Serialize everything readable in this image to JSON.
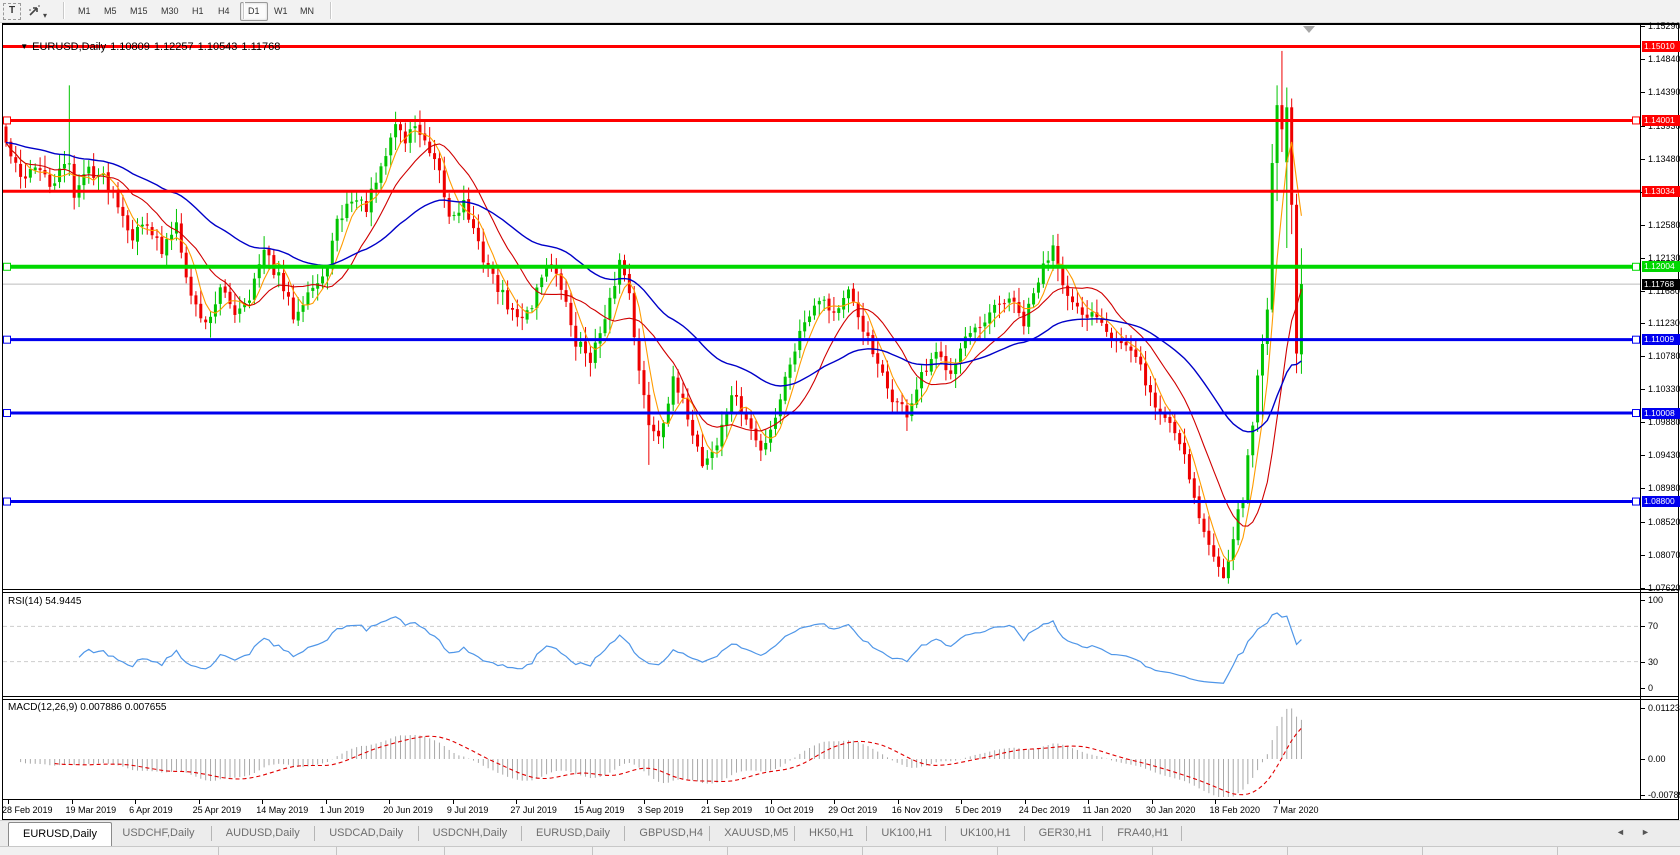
{
  "toolbar": {
    "text_tool_label": "T",
    "timeframes": [
      "M1",
      "M5",
      "M15",
      "M30",
      "H1",
      "H4",
      "D1",
      "W1",
      "MN"
    ],
    "active_timeframe": "D1"
  },
  "window": {
    "info_line": {
      "symbol_period": "EURUSD,Daily",
      "open": "1.10809",
      "high": "1.12257",
      "low": "1.10543",
      "close": "1.11768"
    }
  },
  "price_axis": {
    "ticks": [
      "1.15290",
      "1.14840",
      "1.14390",
      "1.13930",
      "1.13480",
      "1.13030",
      "1.12580",
      "1.12130",
      "1.11680",
      "1.11230",
      "1.10780",
      "1.10330",
      "1.09880",
      "1.09430",
      "1.08980",
      "1.08520",
      "1.08070",
      "1.07620"
    ],
    "top_price": 1.1529,
    "bottom_price": 1.0762
  },
  "rsi_panel": {
    "label": "RSI(14) 54.9445",
    "value": "54.9445",
    "levels": [
      "100",
      "70",
      "30",
      "0"
    ],
    "level_values": [
      100,
      70,
      30,
      0
    ],
    "line_color": "#4f96e8"
  },
  "macd_panel": {
    "label": "MACD(12,26,9) 0.007886 0.007655",
    "macd_value": "0.007886",
    "signal_value": "0.007655",
    "axis": [
      "0.011232",
      "0.00",
      "-0.00789"
    ],
    "axis_values": [
      0.011232,
      0,
      -0.00789
    ],
    "histogram_color": "#a8a8a8",
    "signal_color": "#e00000"
  },
  "date_axis": {
    "labels": [
      "28 Feb 2019",
      "19 Mar 2019",
      "6 Apr 2019",
      "25 Apr 2019",
      "14 May 2019",
      "1 Jun 2019",
      "20 Jun 2019",
      "9 Jul 2019",
      "27 Jul 2019",
      "15 Aug 2019",
      "3 Sep 2019",
      "21 Sep 2019",
      "10 Oct 2019",
      "29 Oct 2019",
      "16 Nov 2019",
      "5 Dec 2019",
      "24 Dec 2019",
      "11 Jan 2020",
      "30 Jan 2020",
      "18 Feb 2020",
      "7 Mar 2020"
    ]
  },
  "tabs": {
    "items": [
      "EURUSD,Daily",
      "USDCHF,Daily",
      "AUDUSD,Daily",
      "USDCAD,Daily",
      "USDCNH,Daily",
      "EURUSD,Daily",
      "GBPUSD,H4",
      "XAUUSD,M5",
      "HK50,H1",
      "UK100,H1",
      "UK100,H1",
      "GER30,H1",
      "FRA40,H1"
    ],
    "active_index": 0,
    "scroll_left": "◄",
    "scroll_right": "►"
  },
  "chart_data": {
    "type": "candlestick",
    "symbol": "EURUSD",
    "timeframe": "Daily",
    "last_candle": {
      "o": 1.10809,
      "h": 1.12257,
      "l": 1.10543,
      "c": 1.11768
    },
    "colors": {
      "bull": "#00c400",
      "bear": "#ee0000",
      "price_line": "#bcbcbc"
    },
    "hlines": [
      {
        "price": 1.1501,
        "label": "1.15010",
        "color": "#ff0000",
        "width": 3,
        "handles": false
      },
      {
        "price": 1.14001,
        "label": "1.14001",
        "color": "#ff0000",
        "width": 3,
        "handles": true
      },
      {
        "price": 1.13034,
        "label": "1.13034",
        "color": "#ff0000",
        "width": 3,
        "handles": false
      },
      {
        "price": 1.12004,
        "label": "1.12004",
        "color": "#00d800",
        "width": 4,
        "handles": true
      },
      {
        "price": 1.11009,
        "label": "1.11009",
        "color": "#0000ee",
        "width": 3,
        "handles": true
      },
      {
        "price": 1.10008,
        "label": "1.10008",
        "color": "#0000ee",
        "width": 3,
        "handles": true
      },
      {
        "price": 1.088,
        "label": "1.08800",
        "color": "#0000ee",
        "width": 3,
        "handles": true
      }
    ],
    "price_marker": {
      "price": 1.11768,
      "label": "1.11768",
      "bg": "#000000"
    },
    "moving_averages": [
      {
        "name": "fast",
        "period": 5,
        "color": "#ff9c00",
        "type": "sma"
      },
      {
        "name": "mid",
        "period": 13,
        "color": "#d00000",
        "type": "sma"
      },
      {
        "name": "slow",
        "period": 45,
        "color": "#0000c8",
        "type": "ema"
      }
    ],
    "anchors": [
      [
        0,
        1.1368
      ],
      [
        3,
        1.132
      ],
      [
        6,
        1.134
      ],
      [
        9,
        1.131
      ],
      [
        13,
        1.1345
      ],
      [
        14,
        1.13
      ],
      [
        17,
        1.1335
      ],
      [
        20,
        1.1322
      ],
      [
        23,
        1.129
      ],
      [
        26,
        1.1242
      ],
      [
        29,
        1.1265
      ],
      [
        32,
        1.1218
      ],
      [
        35,
        1.1262
      ],
      [
        38,
        1.116
      ],
      [
        41,
        1.1122
      ],
      [
        44,
        1.1168
      ],
      [
        47,
        1.114
      ],
      [
        50,
        1.1162
      ],
      [
        53,
        1.122
      ],
      [
        56,
        1.1185
      ],
      [
        59,
        1.1135
      ],
      [
        62,
        1.1168
      ],
      [
        65,
        1.118
      ],
      [
        68,
        1.1258
      ],
      [
        71,
        1.1295
      ],
      [
        74,
        1.1282
      ],
      [
        77,
        1.133
      ],
      [
        80,
        1.1398
      ],
      [
        82,
        1.1372
      ],
      [
        84,
        1.1396
      ],
      [
        87,
        1.1352
      ],
      [
        89,
        1.1325
      ],
      [
        91,
        1.1268
      ],
      [
        94,
        1.1288
      ],
      [
        97,
        1.1228
      ],
      [
        100,
        1.1185
      ],
      [
        103,
        1.1148
      ],
      [
        105,
        1.1128
      ],
      [
        108,
        1.115
      ],
      [
        111,
        1.1208
      ],
      [
        114,
        1.1172
      ],
      [
        117,
        1.1098
      ],
      [
        120,
        1.1078
      ],
      [
        123,
        1.1122
      ],
      [
        126,
        1.1208
      ],
      [
        128,
        1.117
      ],
      [
        130,
        1.1055
      ],
      [
        132,
        1.0988
      ],
      [
        134,
        1.0972
      ],
      [
        137,
        1.1042
      ],
      [
        140,
        1.0998
      ],
      [
        143,
        1.0932
      ],
      [
        146,
        1.0958
      ],
      [
        149,
        1.1028
      ],
      [
        152,
        1.0992
      ],
      [
        155,
        1.0948
      ],
      [
        158,
        1.0998
      ],
      [
        161,
        1.1072
      ],
      [
        164,
        1.1128
      ],
      [
        167,
        1.1162
      ],
      [
        170,
        1.1138
      ],
      [
        173,
        1.1162
      ],
      [
        176,
        1.1118
      ],
      [
        179,
        1.1062
      ],
      [
        182,
        1.1022
      ],
      [
        185,
        1.1
      ],
      [
        188,
        1.1048
      ],
      [
        191,
        1.1078
      ],
      [
        194,
        1.1062
      ],
      [
        197,
        1.1102
      ],
      [
        200,
        1.1112
      ],
      [
        203,
        1.1142
      ],
      [
        206,
        1.1158
      ],
      [
        209,
        1.1122
      ],
      [
        212,
        1.1182
      ],
      [
        215,
        1.1232
      ],
      [
        218,
        1.1158
      ],
      [
        221,
        1.1128
      ],
      [
        224,
        1.1138
      ],
      [
        227,
        1.1108
      ],
      [
        230,
        1.1092
      ],
      [
        233,
        1.1062
      ],
      [
        236,
        1.1008
      ],
      [
        239,
        1.0988
      ],
      [
        242,
        1.0948
      ],
      [
        244,
        1.0885
      ],
      [
        246,
        1.0838
      ],
      [
        248,
        1.0802
      ],
      [
        250,
        1.0782
      ],
      [
        252,
        1.0835
      ],
      [
        254,
        1.0888
      ],
      [
        256,
        1.0985
      ]
    ],
    "spikes": [
      {
        "i": 13,
        "h": 1.1448
      },
      {
        "i": 80,
        "h": 1.1412
      }
    ],
    "dips": [
      {
        "i": 143,
        "l": 1.0926
      },
      {
        "i": 132,
        "l": 1.093
      },
      {
        "i": 250,
        "l": 1.0775
      }
    ],
    "tail_candles": [
      {
        "o": 1.0988,
        "h": 1.106,
        "l": 1.0975,
        "c": 1.1052
      },
      {
        "o": 1.1052,
        "h": 1.1108,
        "l": 1.0992,
        "c": 1.1095
      },
      {
        "o": 1.1095,
        "h": 1.1158,
        "l": 1.108,
        "c": 1.1142
      },
      {
        "o": 1.1142,
        "h": 1.1368,
        "l": 1.1138,
        "c": 1.1342
      },
      {
        "o": 1.1342,
        "h": 1.1448,
        "l": 1.129,
        "c": 1.1421
      },
      {
        "o": 1.1421,
        "h": 1.1495,
        "l": 1.1357,
        "c": 1.1388
      },
      {
        "o": 1.1343,
        "h": 1.1445,
        "l": 1.1226,
        "c": 1.1418
      },
      {
        "o": 1.1418,
        "h": 1.143,
        "l": 1.1245,
        "c": 1.1285
      },
      {
        "o": 1.1285,
        "h": 1.13,
        "l": 1.1055,
        "c": 1.1082
      },
      {
        "o": 1.10809,
        "h": 1.12257,
        "l": 1.10543,
        "c": 1.11768
      }
    ],
    "seed": 42
  }
}
